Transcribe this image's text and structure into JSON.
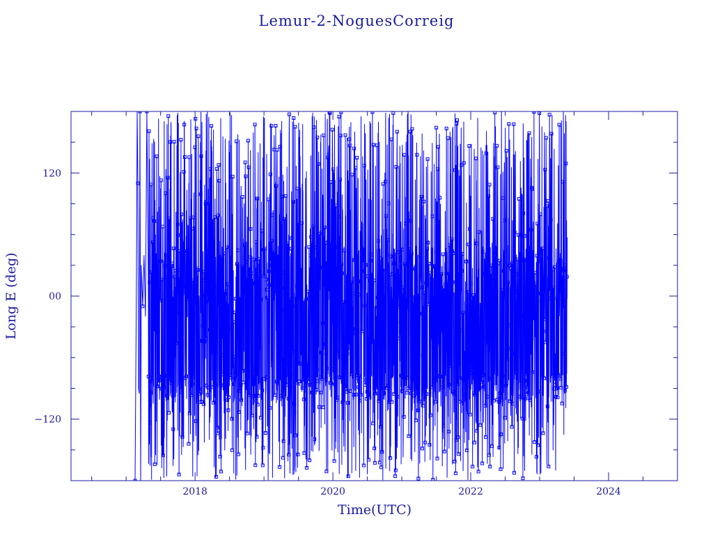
{
  "chart_data": {
    "type": "line",
    "title": "Lemur-2-NoguesCorreig",
    "xlabel": "Time(UTC)",
    "ylabel": "Long E (deg)",
    "xlim": [
      2016.2,
      2025.0
    ],
    "ylim": [
      -180,
      180
    ],
    "xticks": [
      2018,
      2020,
      2022,
      2024
    ],
    "xtick_labels": [
      "2018",
      "2020",
      "2022",
      "2024"
    ],
    "yticks": [
      -120,
      0,
      120
    ],
    "ytick_labels": [
      "−120",
      "00",
      "120"
    ],
    "grid": false,
    "colors": {
      "frame": "#1a1aa0",
      "series": "#0000ff"
    },
    "series": [
      {
        "x_start": 2017.15,
        "x_end": 2023.4,
        "y_range": [
          -180,
          180
        ],
        "description_points": [
          [
            2017.15,
            20
          ],
          [
            2017.17,
            110
          ],
          [
            2017.19,
            -95
          ],
          [
            2017.2,
            180
          ],
          [
            2017.22,
            -180
          ],
          [
            2017.25,
            30
          ],
          [
            2017.3,
            -20
          ],
          [
            2017.35,
            120
          ],
          [
            2017.4,
            -120
          ],
          [
            2018.0,
            60
          ],
          [
            2019.0,
            -90
          ],
          [
            2020.0,
            40
          ],
          [
            2021.0,
            -100
          ],
          [
            2022.0,
            80
          ],
          [
            2023.0,
            -90
          ],
          [
            2023.4,
            150
          ]
        ]
      }
    ]
  }
}
